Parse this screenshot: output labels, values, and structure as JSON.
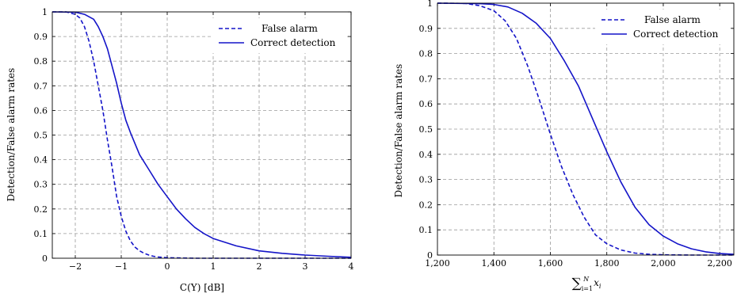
{
  "colors": {
    "series": "#1414c8",
    "grid": "#9a9a9a",
    "axis": "#000000"
  },
  "chart_data": [
    {
      "type": "line",
      "xlabel": "C(Y) [dB]",
      "ylabel": "Detection/False alarm rates",
      "xlim": [
        -2.5,
        4
      ],
      "ylim": [
        0,
        1
      ],
      "xticks": [
        -2,
        -1,
        0,
        1,
        2,
        3,
        4
      ],
      "xtick_labels": [
        "−2",
        "−1",
        "0",
        "1",
        "2",
        "3",
        "4"
      ],
      "yticks": [
        0,
        0.1,
        0.2,
        0.3,
        0.4,
        0.5,
        0.6,
        0.7,
        0.8,
        0.9,
        1
      ],
      "ytick_labels": [
        "0",
        "0.1",
        "0.2",
        "0.3",
        "0.4",
        "0.5",
        "0.6",
        "0.7",
        "0.8",
        "0.9",
        "1"
      ],
      "grid": true,
      "legend_position": "top-right",
      "series": [
        {
          "name": "False alarm",
          "style": "dashed",
          "x": [
            -2.5,
            -2.2,
            -2.0,
            -1.9,
            -1.8,
            -1.7,
            -1.6,
            -1.5,
            -1.4,
            -1.3,
            -1.2,
            -1.1,
            -1.0,
            -0.9,
            -0.8,
            -0.7,
            -0.6,
            -0.5,
            -0.4,
            -0.3,
            -0.2,
            0.0,
            0.3,
            0.6,
            1.0,
            2.0,
            3.0,
            4.0
          ],
          "y": [
            1.0,
            1.0,
            0.99,
            0.975,
            0.94,
            0.88,
            0.8,
            0.7,
            0.6,
            0.48,
            0.37,
            0.25,
            0.17,
            0.11,
            0.07,
            0.045,
            0.03,
            0.02,
            0.013,
            0.008,
            0.005,
            0.002,
            0.001,
            0.0,
            0.0,
            0.0,
            0.0,
            0.0
          ]
        },
        {
          "name": "Correct detection",
          "style": "solid",
          "x": [
            -2.5,
            -2.0,
            -1.8,
            -1.6,
            -1.5,
            -1.4,
            -1.3,
            -1.2,
            -1.1,
            -1.0,
            -0.9,
            -0.8,
            -0.6,
            -0.4,
            -0.2,
            0.0,
            0.2,
            0.4,
            0.6,
            0.8,
            1.0,
            1.5,
            2.0,
            2.5,
            3.0,
            3.5,
            4.0
          ],
          "y": [
            1.0,
            0.999,
            0.99,
            0.97,
            0.94,
            0.9,
            0.85,
            0.78,
            0.71,
            0.63,
            0.56,
            0.51,
            0.42,
            0.36,
            0.3,
            0.25,
            0.2,
            0.16,
            0.125,
            0.1,
            0.08,
            0.05,
            0.03,
            0.02,
            0.013,
            0.008,
            0.004
          ]
        }
      ]
    },
    {
      "type": "line",
      "xlabel": "∑ x_i (i=1..N)",
      "ylabel": "Detection/False alarm rates",
      "xlim": [
        1200,
        2250
      ],
      "ylim": [
        0,
        1
      ],
      "xticks": [
        1200,
        1400,
        1600,
        1800,
        2000,
        2200
      ],
      "xtick_labels": [
        "1,200",
        "1,400",
        "1,600",
        "1,800",
        "2,000",
        "2,200"
      ],
      "yticks": [
        0,
        0.1,
        0.2,
        0.3,
        0.4,
        0.5,
        0.6,
        0.7,
        0.8,
        0.9,
        1
      ],
      "ytick_labels": [
        "0",
        "0.1",
        "0.2",
        "0.3",
        "0.4",
        "0.5",
        "0.6",
        "0.7",
        "0.8",
        "0.9",
        "1"
      ],
      "grid": true,
      "legend_position": "top-right",
      "series": [
        {
          "name": "False alarm",
          "style": "dashed",
          "x": [
            1200,
            1300,
            1350,
            1400,
            1440,
            1480,
            1520,
            1560,
            1600,
            1640,
            1680,
            1720,
            1760,
            1800,
            1850,
            1900,
            1950,
            2000,
            2100,
            2250
          ],
          "y": [
            1.0,
            0.999,
            0.99,
            0.97,
            0.93,
            0.86,
            0.75,
            0.62,
            0.48,
            0.35,
            0.24,
            0.15,
            0.08,
            0.045,
            0.02,
            0.008,
            0.003,
            0.001,
            0.0,
            0.0
          ]
        },
        {
          "name": "Correct detection",
          "style": "solid",
          "x": [
            1200,
            1350,
            1400,
            1450,
            1500,
            1550,
            1600,
            1650,
            1700,
            1750,
            1800,
            1850,
            1900,
            1950,
            2000,
            2050,
            2100,
            2150,
            2200,
            2250
          ],
          "y": [
            1.0,
            0.998,
            0.995,
            0.985,
            0.96,
            0.92,
            0.86,
            0.77,
            0.67,
            0.54,
            0.41,
            0.29,
            0.19,
            0.12,
            0.075,
            0.045,
            0.025,
            0.013,
            0.006,
            0.003
          ]
        }
      ]
    }
  ]
}
